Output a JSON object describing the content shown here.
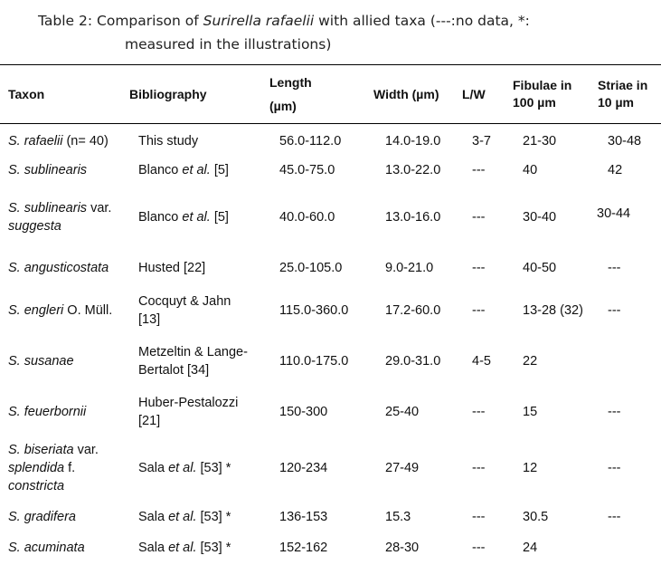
{
  "caption": {
    "prefix": "Table 2:  Comparison of ",
    "species": "Surirella rafaelii",
    "rest1": "  with allied taxa (---:no data, *:",
    "line2": "measured in the illustrations)"
  },
  "headers": {
    "taxon": "Taxon",
    "bibliography": "Bibliography",
    "length_l1": "Length",
    "length_l2": "(µm)",
    "width": "Width (µm)",
    "lw": "L/W",
    "fibulae_l1": "Fibulae in",
    "fibulae_l2": "100 µm",
    "striae_l1": "Striae in",
    "striae_l2": "10 µm"
  },
  "rows": [
    {
      "taxon_a": "S. rafaelii",
      "taxon_b": " (n= 40)",
      "taxon_c": "",
      "taxon_d": "",
      "bib_a": "This study",
      "bib_b": "",
      "bib_c": "",
      "bib_d": "",
      "length": "56.0-112.0",
      "width": "14.0-19.0",
      "lw": "3-7",
      "fibulae": "21-30",
      "striae": "30-48"
    },
    {
      "taxon_a": "S. sublinearis",
      "taxon_b": "",
      "taxon_c": "",
      "taxon_d": "",
      "bib_a": "Blanco ",
      "bib_b": "et al.",
      "bib_c": " [5]",
      "bib_d": "",
      "length": "45.0-75.0",
      "width": "13.0-22.0",
      "lw": "---",
      "fibulae": "40",
      "striae": "42"
    },
    {
      "taxon_a": "S. sublinearis",
      "taxon_b": " var.",
      "taxon_c": "suggesta",
      "taxon_d": "",
      "bib_a": "Blanco ",
      "bib_b": "et al.",
      "bib_c": " [5]",
      "bib_d": "",
      "length": "40.0-60.0",
      "width": "13.0-16.0",
      "lw": "---",
      "fibulae": "30-40",
      "striae": "30-44"
    },
    {
      "taxon_a": "S. angusticostata",
      "taxon_b": "",
      "taxon_c": "",
      "taxon_d": "",
      "bib_a": "Husted [22]",
      "bib_b": "",
      "bib_c": "",
      "bib_d": "",
      "length": "25.0-105.0",
      "width": "9.0-21.0",
      "lw": "---",
      "fibulae": "40-50",
      "striae": "---"
    },
    {
      "taxon_a": "S. engleri",
      "taxon_b": " O. Müll.",
      "taxon_c": "",
      "taxon_d": "",
      "bib_a": "Cocquyt & Jahn",
      "bib_b": "[13]",
      "bib_c": "",
      "bib_d": "",
      "length": "115.0-360.0",
      "width": "17.2-60.0",
      "lw": "---",
      "fibulae": "13-28 (32)",
      "striae": "---"
    },
    {
      "taxon_a": "S. susanae",
      "taxon_b": "",
      "taxon_c": "",
      "taxon_d": "",
      "bib_a": "Metzeltin & Lange-",
      "bib_b": "Bertalot [34]",
      "bib_c": "",
      "bib_d": "",
      "length": "110.0-175.0",
      "width": "29.0-31.0",
      "lw": "4-5",
      "fibulae": "22",
      "striae": ""
    },
    {
      "taxon_a": "S. feuerbornii",
      "taxon_b": "",
      "taxon_c": "",
      "taxon_d": "",
      "bib_a": "Huber-Pestalozzi",
      "bib_b": "[21]",
      "bib_c": "",
      "bib_d": "",
      "length": "150-300",
      "width": "25-40",
      "lw": "---",
      "fibulae": "15",
      "striae": "---"
    },
    {
      "taxon_a": "S. biseriata",
      "taxon_b": " var.",
      "taxon_c": "splendida",
      "taxon_d": " f.",
      "taxon_e": "constricta",
      "bib_a": "Sala ",
      "bib_b": "et al.",
      "bib_c": " [53] *",
      "bib_d": "",
      "length": "120-234",
      "width": "27-49",
      "lw": "---",
      "fibulae": "12",
      "striae": "---"
    },
    {
      "taxon_a": "S. gradifera",
      "taxon_b": "",
      "taxon_c": "",
      "taxon_d": "",
      "bib_a": "Sala ",
      "bib_b": "et al.",
      "bib_c": " [53] *",
      "bib_d": "",
      "length": "136-153",
      "width": "15.3",
      "lw": "---",
      "fibulae": "30.5",
      "striae": "---"
    },
    {
      "taxon_a": "S. acuminata",
      "taxon_b": "",
      "taxon_c": "",
      "taxon_d": "",
      "bib_a": "Sala ",
      "bib_b": "et al.",
      "bib_c": " [53] *",
      "bib_d": "",
      "length": "152-162",
      "width": "28-30",
      "lw": "---",
      "fibulae": "24",
      "striae": ""
    }
  ]
}
